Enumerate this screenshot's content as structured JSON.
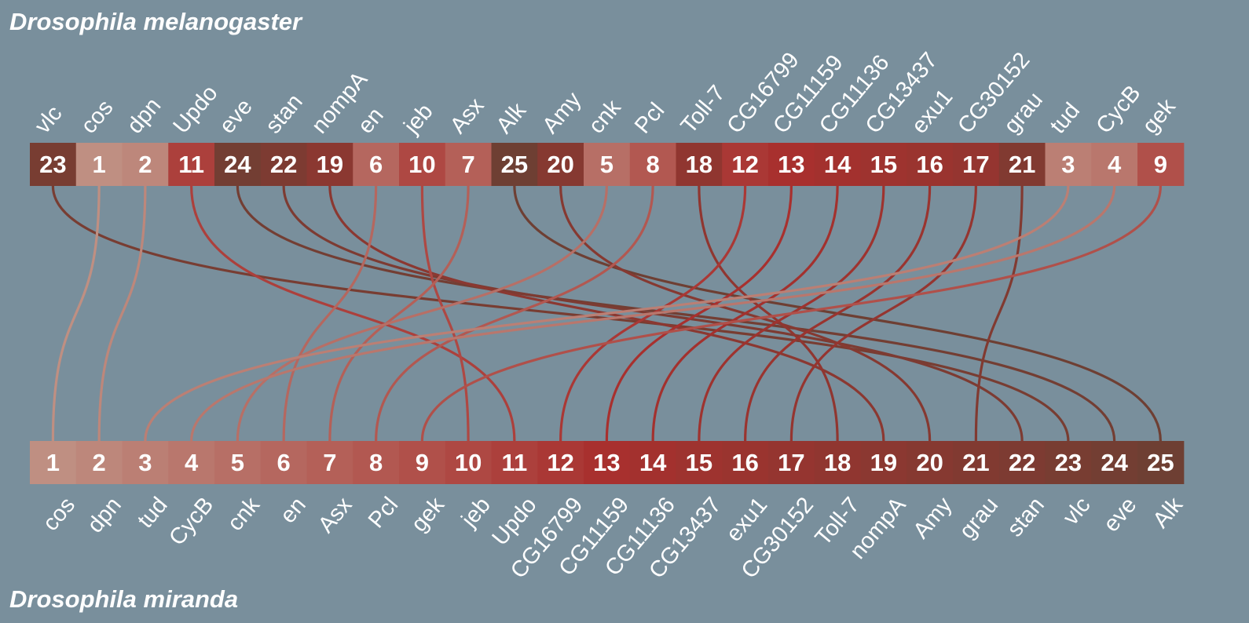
{
  "top_species": "Drosophila melanogaster",
  "bottom_species": "Drosophila miranda",
  "top_genes": [
    {
      "name": "vlc",
      "rank": 23
    },
    {
      "name": "cos",
      "rank": 1
    },
    {
      "name": "dpn",
      "rank": 2
    },
    {
      "name": "Updo",
      "rank": 11
    },
    {
      "name": "eve",
      "rank": 24
    },
    {
      "name": "stan",
      "rank": 22
    },
    {
      "name": "nompA",
      "rank": 19
    },
    {
      "name": "en",
      "rank": 6
    },
    {
      "name": "jeb",
      "rank": 10
    },
    {
      "name": "Asx",
      "rank": 7
    },
    {
      "name": "Alk",
      "rank": 25
    },
    {
      "name": "Amy",
      "rank": 20
    },
    {
      "name": "cnk",
      "rank": 5
    },
    {
      "name": "Pcl",
      "rank": 8
    },
    {
      "name": "Toll-7",
      "rank": 18
    },
    {
      "name": "CG16799",
      "rank": 12
    },
    {
      "name": "CG11159",
      "rank": 13
    },
    {
      "name": "CG11136",
      "rank": 14
    },
    {
      "name": "CG13437",
      "rank": 15
    },
    {
      "name": "exu1",
      "rank": 16
    },
    {
      "name": "CG30152",
      "rank": 17
    },
    {
      "name": "grau",
      "rank": 21
    },
    {
      "name": "tud",
      "rank": 3
    },
    {
      "name": "CycB",
      "rank": 4
    },
    {
      "name": "gek",
      "rank": 9
    }
  ],
  "bottom_genes": [
    "cos",
    "dpn",
    "tud",
    "CycB",
    "cnk",
    "en",
    "Asx",
    "Pcl",
    "gek",
    "jeb",
    "Updo",
    "CG16799",
    "CG11159",
    "CG11136",
    "CG13437",
    "exu1",
    "CG30152",
    "Toll-7",
    "nompA",
    "Amy",
    "grau",
    "stan",
    "vlc",
    "eve",
    "Alk"
  ],
  "colors": {
    "background": "#798f9c",
    "rank_ramp": [
      "#bf8f82",
      "#a8302e",
      "#6e3f33"
    ]
  }
}
